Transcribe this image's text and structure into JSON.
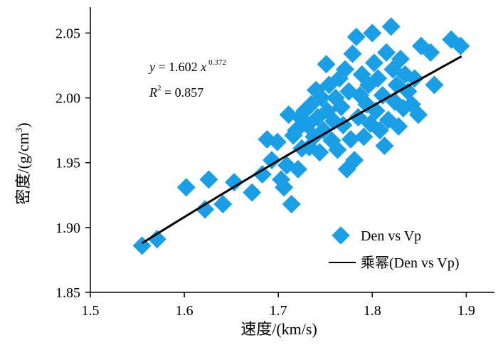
{
  "chart_data": {
    "type": "scatter",
    "xlabel": "速度/(km/s)",
    "ylabel": "密度/(g/cm",
    "ylabel_sup": "3",
    "ylabel_end": ")",
    "xlim": [
      1.5,
      1.93
    ],
    "ylim": [
      1.85,
      2.07
    ],
    "xticks": [
      "1.5",
      "1.6",
      "1.7",
      "1.8",
      "1.9"
    ],
    "yticks": [
      "1.85",
      "1.90",
      "1.95",
      "2.00",
      "2.05"
    ],
    "grid": false,
    "legend_position": "bottom-right",
    "colors": {
      "points": "#1a9ee6",
      "fit": "#000000"
    },
    "equation": {
      "lhs": "y",
      "equals": " = 1.602 ",
      "var": "x",
      "exponent": "0.372",
      "r2_label": "R",
      "r2_sup": "2",
      "r2_value": " = 0.857"
    },
    "series": [
      {
        "name": "Den vs Vp",
        "kind": "scatter",
        "points": [
          [
            1.555,
            1.886
          ],
          [
            1.571,
            1.891
          ],
          [
            1.602,
            1.931
          ],
          [
            1.622,
            1.914
          ],
          [
            1.626,
            1.937
          ],
          [
            1.641,
            1.918
          ],
          [
            1.653,
            1.935
          ],
          [
            1.672,
            1.927
          ],
          [
            1.683,
            1.941
          ],
          [
            1.688,
            1.968
          ],
          [
            1.693,
            1.952
          ],
          [
            1.699,
            1.966
          ],
          [
            1.703,
            1.937
          ],
          [
            1.706,
            1.931
          ],
          [
            1.709,
            1.948
          ],
          [
            1.711,
            1.987
          ],
          [
            1.714,
            1.918
          ],
          [
            1.716,
            1.971
          ],
          [
            1.719,
            1.975
          ],
          [
            1.721,
            1.945
          ],
          [
            1.723,
            1.985
          ],
          [
            1.725,
            1.961
          ],
          [
            1.728,
            1.99
          ],
          [
            1.731,
            1.979
          ],
          [
            1.733,
            1.962
          ],
          [
            1.735,
            1.995
          ],
          [
            1.738,
            1.97
          ],
          [
            1.74,
            2.006
          ],
          [
            1.742,
            1.985
          ],
          [
            1.744,
            1.958
          ],
          [
            1.746,
            2.0
          ],
          [
            1.748,
            1.975
          ],
          [
            1.751,
            2.026
          ],
          [
            1.752,
            1.99
          ],
          [
            1.754,
            2.01
          ],
          [
            1.757,
            1.967
          ],
          [
            1.759,
            1.982
          ],
          [
            1.761,
            2.0
          ],
          [
            1.763,
            1.96
          ],
          [
            1.765,
            2.015
          ],
          [
            1.767,
            1.993
          ],
          [
            1.769,
            1.979
          ],
          [
            1.771,
            2.022
          ],
          [
            1.773,
            1.945
          ],
          [
            1.775,
            2.005
          ],
          [
            1.777,
            1.968
          ],
          [
            1.779,
            2.034
          ],
          [
            1.781,
            1.952
          ],
          [
            1.783,
            2.047
          ],
          [
            1.785,
            1.985
          ],
          [
            1.787,
            2.002
          ],
          [
            1.789,
            2.018
          ],
          [
            1.791,
            1.97
          ],
          [
            1.794,
            1.995
          ],
          [
            1.796,
            2.01
          ],
          [
            1.798,
            1.98
          ],
          [
            1.8,
            2.05
          ],
          [
            1.802,
            2.027
          ],
          [
            1.804,
            1.99
          ],
          [
            1.806,
            2.015
          ],
          [
            1.808,
            1.975
          ],
          [
            1.811,
            2.002
          ],
          [
            1.813,
            1.963
          ],
          [
            1.815,
            2.035
          ],
          [
            1.817,
            1.983
          ],
          [
            1.82,
            2.055
          ],
          [
            1.822,
            2.022
          ],
          [
            1.824,
            1.997
          ],
          [
            1.826,
            2.01
          ],
          [
            1.828,
            1.978
          ],
          [
            1.83,
            2.03
          ],
          [
            1.833,
            1.992
          ],
          [
            1.835,
            2.018
          ],
          [
            1.838,
            2.005
          ],
          [
            1.842,
            1.995
          ],
          [
            1.845,
            2.015
          ],
          [
            1.849,
            1.987
          ],
          [
            1.852,
            2.04
          ],
          [
            1.862,
            2.035
          ],
          [
            1.866,
            2.01
          ],
          [
            1.884,
            2.045
          ],
          [
            1.894,
            2.04
          ]
        ]
      },
      {
        "name": "乘幂(Den vs Vp)",
        "kind": "line",
        "fit": {
          "a": 1.602,
          "b": 0.372,
          "x_range": [
            1.555,
            1.895
          ]
        }
      }
    ]
  }
}
